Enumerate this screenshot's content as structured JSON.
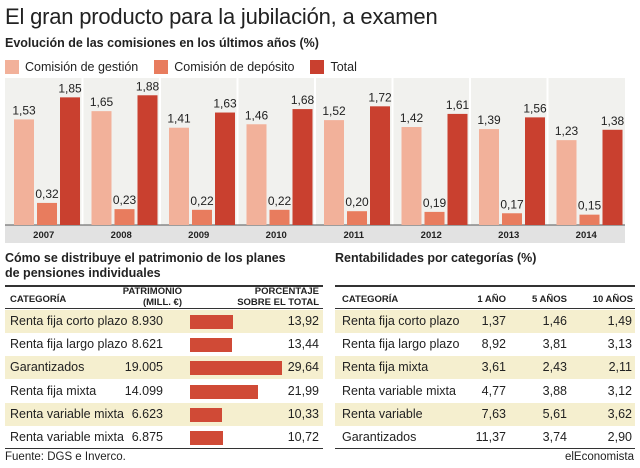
{
  "header": {
    "title": "El gran producto para la jubilación, a examen",
    "subtitle": "Evolución de las comisiones en los últimos años (%)"
  },
  "colors": {
    "gestion": "#f2b19a",
    "deposito": "#e87c5e",
    "total": "#c9402f",
    "stripe": "#f5efcf",
    "hbar": "#d04a36"
  },
  "chart_data": [
    {
      "type": "bar",
      "title": "Evolución de las comisiones en los últimos años (%)",
      "categories": [
        "2007",
        "2008",
        "2009",
        "2010",
        "2011",
        "2012",
        "2013",
        "2014"
      ],
      "series": [
        {
          "name": "Comisión de gestión",
          "values": [
            1.53,
            1.65,
            1.41,
            1.46,
            1.52,
            1.42,
            1.39,
            1.23
          ],
          "labels": [
            "1,53",
            "1,65",
            "1,41",
            "1,46",
            "1,52",
            "1,42",
            "1,39",
            "1,23"
          ]
        },
        {
          "name": "Comisión de depósito",
          "values": [
            0.32,
            0.23,
            0.22,
            0.22,
            0.2,
            0.19,
            0.17,
            0.15
          ],
          "labels": [
            "0,32",
            "0,23",
            "0,22",
            "0,22",
            "0,20",
            "0,19",
            "0,17",
            "0,15"
          ]
        },
        {
          "name": "Total",
          "values": [
            1.85,
            1.88,
            1.63,
            1.68,
            1.72,
            1.61,
            1.56,
            1.38
          ],
          "labels": [
            "1,85",
            "1,88",
            "1,63",
            "1,68",
            "1,72",
            "1,61",
            "1,56",
            "1,38"
          ]
        }
      ],
      "ylim": [
        0,
        2
      ],
      "legend": "top-left"
    },
    {
      "type": "table",
      "title": "Cómo se distribuye el patrimonio de los planes de pensiones individuales",
      "columns": [
        "CATEGORÍA",
        "PATRIMONIO (MILL. €)",
        "PORCENTAJE SOBRE EL TOTAL"
      ],
      "rows": [
        {
          "categoria": "Renta fija corto plazo",
          "patrimonio": "8.930",
          "porcentaje": "13,92",
          "pct_value": 13.92
        },
        {
          "categoria": "Renta fija largo plazo",
          "patrimonio": "8.621",
          "porcentaje": "13,44",
          "pct_value": 13.44
        },
        {
          "categoria": "Garantizados",
          "patrimonio": "19.005",
          "porcentaje": "29,64",
          "pct_value": 29.64
        },
        {
          "categoria": "Renta fija mixta",
          "patrimonio": "14.099",
          "porcentaje": "21,99",
          "pct_value": 21.99
        },
        {
          "categoria": "Renta variable mixta",
          "patrimonio": "6.623",
          "porcentaje": "10,33",
          "pct_value": 10.33
        },
        {
          "categoria": "Renta variable mixta",
          "patrimonio": "6.875",
          "porcentaje": "10,72",
          "pct_value": 10.72
        }
      ]
    },
    {
      "type": "table",
      "title": "Rentabilidades por categorías (%)",
      "columns": [
        "CATEGORÍA",
        "1 AÑO",
        "5 AÑOS",
        "10 AÑOS"
      ],
      "rows": [
        {
          "categoria": "Renta fija corto plazo",
          "y1": "1,37",
          "y5": "1,46",
          "y10": "1,49"
        },
        {
          "categoria": "Renta fija largo plazo",
          "y1": "8,92",
          "y5": "3,81",
          "y10": "3,13"
        },
        {
          "categoria": "Renta fija mixta",
          "y1": "3,61",
          "y5": "2,43",
          "y10": "2,11"
        },
        {
          "categoria": "Renta variable mixta",
          "y1": "4,77",
          "y5": "3,88",
          "y10": "3,12"
        },
        {
          "categoria": "Renta variable",
          "y1": "7,63",
          "y5": "5,61",
          "y10": "3,62"
        },
        {
          "categoria": "Garantizados",
          "y1": "11,37",
          "y5": "3,74",
          "y10": "2,90"
        }
      ]
    }
  ],
  "patrimonio_table": {
    "title_line1": "Cómo se distribuye el patrimonio de los planes",
    "title_line2": "de pensiones individuales",
    "col_categoria": "CATEGORÍA",
    "col_patrimonio_1": "PATRIMONIO",
    "col_patrimonio_2": "(MILL. €)",
    "col_porcentaje_1": "PORCENTAJE",
    "col_porcentaje_2": "SOBRE EL TOTAL"
  },
  "rentabilidad_table": {
    "title": "Rentabilidades por categorías (%)",
    "col_categoria": "CATEGORÍA",
    "col_1": "1 AÑO",
    "col_5": "5 AÑOS",
    "col_10": "10 AÑOS"
  },
  "footer": {
    "source": "Fuente: DGS e Inverco.",
    "brand": "elEconomista"
  }
}
